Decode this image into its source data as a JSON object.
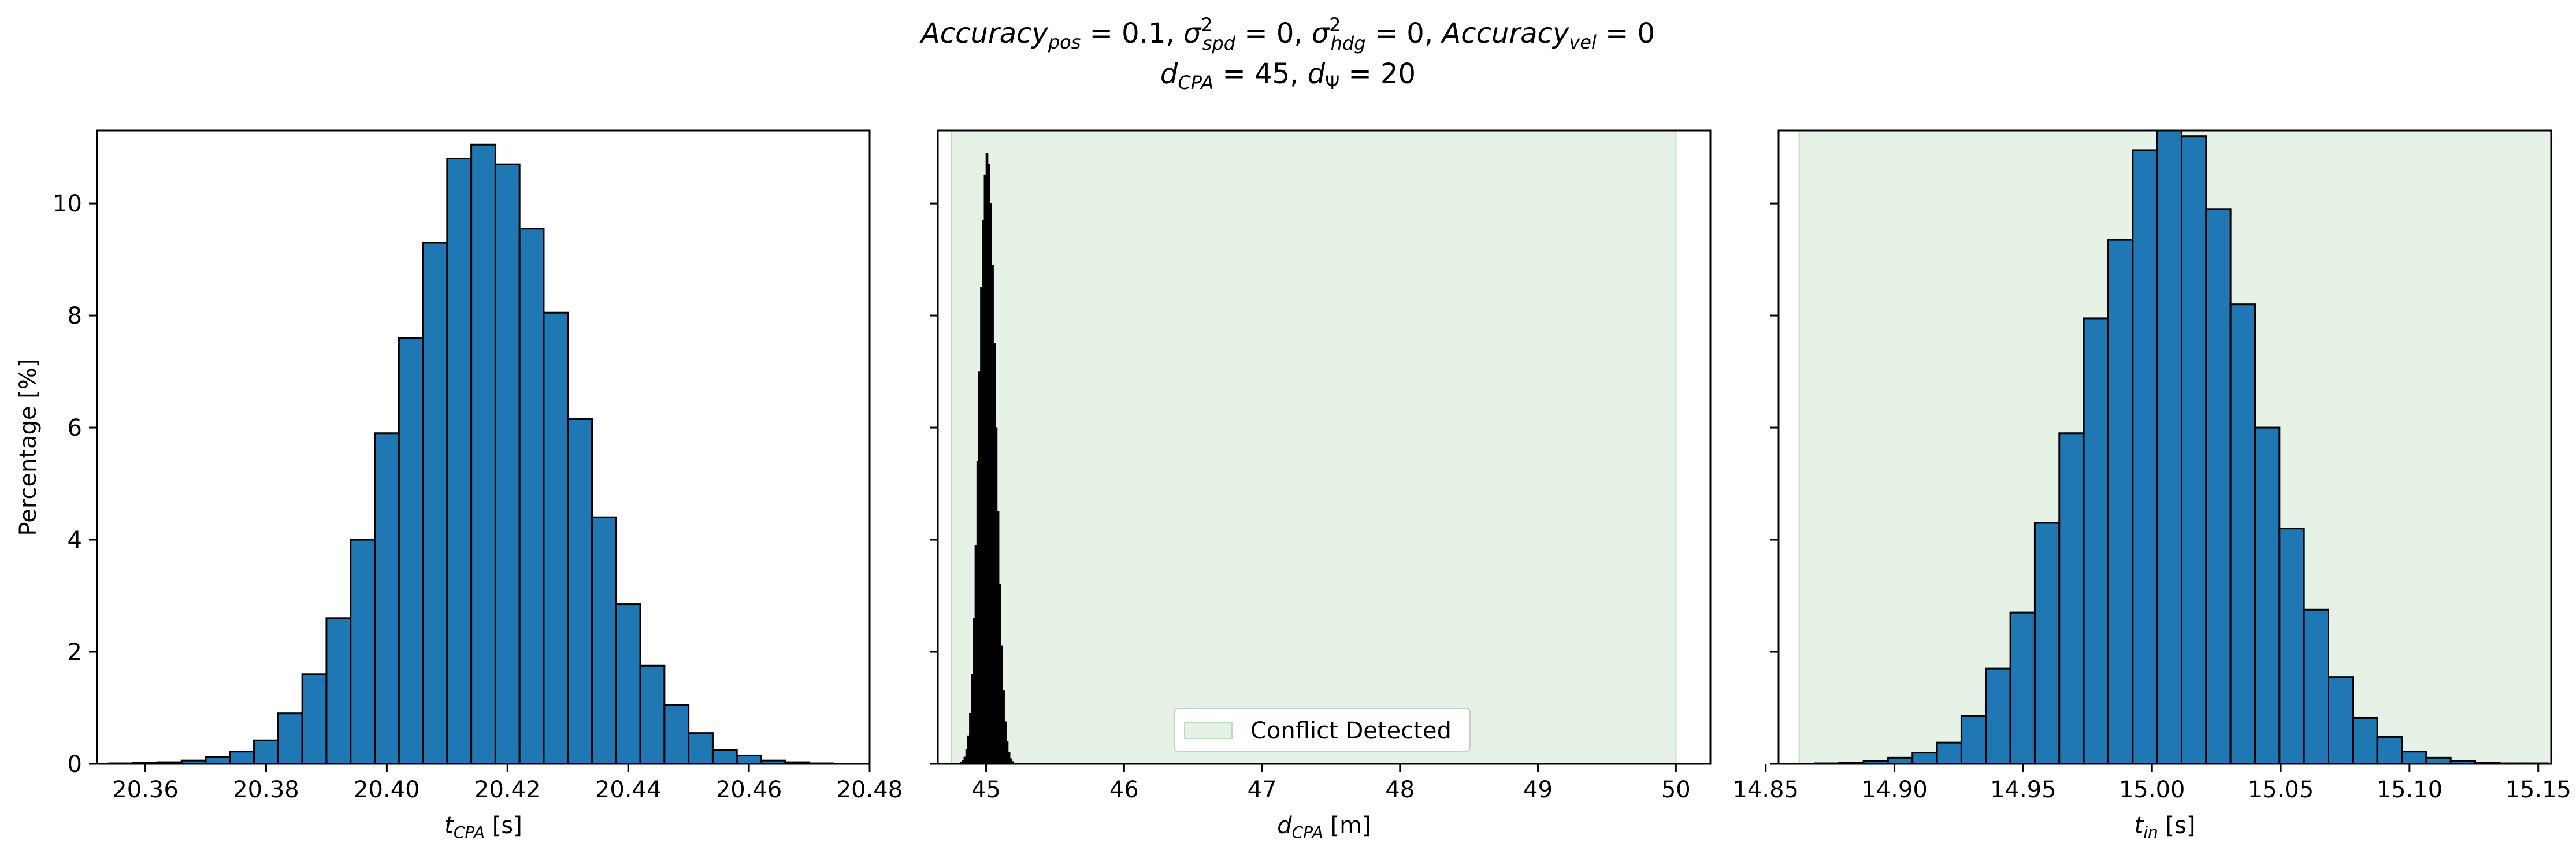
{
  "figure": {
    "title_line1": "Accuracy_pos = 0.1, σ²_spd = 0, σ²_hdg = 0, Accuracy_vel = 0",
    "title_line2": "d_CPA = 45, d_Ψ = 20"
  },
  "colors": {
    "bar_fill": "#1f77b4",
    "bar_edge": "#000000",
    "conflict_fill": "#e5f2e5",
    "conflict_edge": "#b9dcb9"
  },
  "chart_data": [
    {
      "type": "bar",
      "name": "t_CPA",
      "xlabel": "t_CPA [s]",
      "ylabel": "Percentage [%]",
      "xlim": [
        20.352,
        20.48
      ],
      "ylim": [
        0,
        11.3
      ],
      "xticks": [
        "20.36",
        "20.38",
        "20.40",
        "20.42",
        "20.44",
        "20.46",
        "20.48"
      ],
      "yticks": [
        "0",
        "2",
        "4",
        "6",
        "8",
        "10"
      ],
      "bin_start": 20.354,
      "bin_width": 0.004,
      "values": [
        0.01,
        0.02,
        0.03,
        0.06,
        0.12,
        0.22,
        0.42,
        0.9,
        1.6,
        2.6,
        4.0,
        5.9,
        7.6,
        9.3,
        10.8,
        11.05,
        10.7,
        9.55,
        8.05,
        6.15,
        4.4,
        2.85,
        1.75,
        1.05,
        0.55,
        0.25,
        0.15,
        0.06,
        0.03,
        0.01
      ]
    },
    {
      "type": "bar",
      "name": "d_CPA",
      "xlabel": "d_CPA [m]",
      "ylabel": "",
      "xlim": [
        44.65,
        50.25
      ],
      "ylim": [
        0,
        11.3
      ],
      "xticks": [
        "45",
        "46",
        "47",
        "48",
        "49",
        "50"
      ],
      "conflict_region": [
        44.75,
        50.0
      ],
      "legend": {
        "label": "Conflict Detected",
        "placement": "lower center"
      },
      "bin_start": 44.8,
      "bin_width": 0.0133,
      "values": [
        0.01,
        0.03,
        0.06,
        0.12,
        0.25,
        0.5,
        0.9,
        1.6,
        2.6,
        3.9,
        5.4,
        7.0,
        8.5,
        9.7,
        10.5,
        10.9,
        10.7,
        10.0,
        8.9,
        7.5,
        6.0,
        4.5,
        3.2,
        2.1,
        1.3,
        0.75,
        0.4,
        0.2,
        0.09,
        0.04
      ]
    },
    {
      "type": "bar",
      "name": "t_in",
      "xlabel": "t_in [s]",
      "ylabel": "",
      "xlim": [
        14.855,
        15.155
      ],
      "ylim": [
        0,
        11.3
      ],
      "xticks": [
        "14.85",
        "14.90",
        "14.95",
        "15.00",
        "15.05",
        "15.10",
        "15.15"
      ],
      "conflict_region": [
        14.863,
        15.155
      ],
      "bin_start": 14.869,
      "bin_width": 0.0095,
      "values": [
        0.01,
        0.02,
        0.05,
        0.11,
        0.2,
        0.38,
        0.85,
        1.7,
        2.7,
        4.3,
        5.9,
        7.95,
        9.35,
        10.95,
        11.3,
        11.2,
        9.9,
        8.2,
        6.0,
        4.2,
        2.75,
        1.55,
        0.82,
        0.48,
        0.22,
        0.11,
        0.05,
        0.02,
        0.01,
        0.01
      ]
    }
  ]
}
